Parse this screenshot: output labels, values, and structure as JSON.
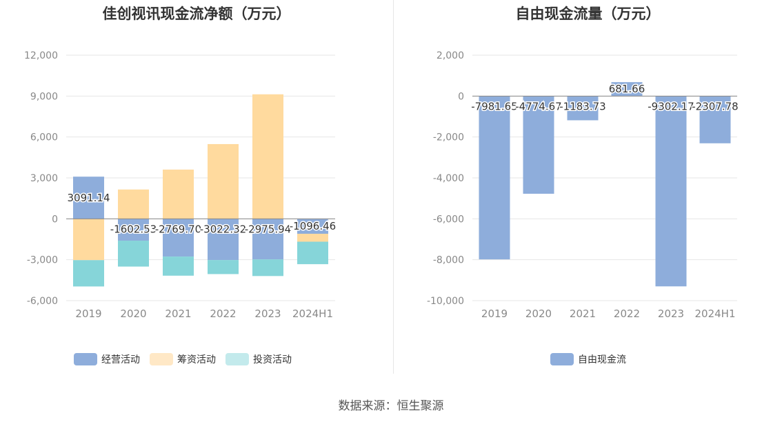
{
  "source": "数据来源：恒生聚源",
  "colors": {
    "operating": "#8EADDB",
    "financing": "#FFDA9E",
    "investing": "#86D5D9",
    "financing_legend": "#FFE8C6",
    "investing_legend": "#C3EAEC",
    "free": "#8EADDB"
  },
  "chart_data": [
    {
      "type": "bar",
      "stacked": true,
      "title": "佳创视讯现金流净额（万元）",
      "categories": [
        "2019",
        "2020",
        "2021",
        "2022",
        "2023",
        "2024H1"
      ],
      "ylim": [
        -6000,
        12000
      ],
      "yticks": [
        12000,
        9000,
        6000,
        3000,
        0,
        -3000,
        -6000
      ],
      "ytick_labels": [
        "12,000",
        "9,000",
        "6,000",
        "3,000",
        "0",
        "-3,000",
        "-6,000"
      ],
      "series": [
        {
          "name": "经营活动",
          "values": [
            3091.14,
            -1602.53,
            -2769.7,
            -3022.32,
            -2975.94,
            -1096.46
          ]
        },
        {
          "name": "筹资活动",
          "values": [
            -3030,
            2150,
            3610,
            5480,
            9130,
            -580
          ]
        },
        {
          "name": "投资活动",
          "values": [
            -1930,
            -1900,
            -1400,
            -1030,
            -1220,
            -1650
          ]
        }
      ],
      "data_labels": [
        "3091.14",
        "-1602.53",
        "-2769.70",
        "-3022.32",
        "-2975.94",
        "-1096.46"
      ],
      "legend": [
        "经营活动",
        "筹资活动",
        "投资活动"
      ],
      "grid": true
    },
    {
      "type": "bar",
      "title": "自由现金流量（万元）",
      "categories": [
        "2019",
        "2020",
        "2021",
        "2022",
        "2023",
        "2024H1"
      ],
      "ylim": [
        -10000,
        2000
      ],
      "yticks": [
        2000,
        0,
        -2000,
        -4000,
        -6000,
        -8000,
        -10000
      ],
      "ytick_labels": [
        "2,000",
        "0",
        "-2,000",
        "-4,000",
        "-6,000",
        "-8,000",
        "-10,000"
      ],
      "series": [
        {
          "name": "自由现金流",
          "values": [
            -7981.65,
            -4774.67,
            -1183.73,
            681.66,
            -9302.17,
            -2307.78
          ]
        }
      ],
      "data_labels": [
        "-7981.65",
        "-4774.67",
        "-1183.73",
        "681.66",
        "-9302.17",
        "-2307.78"
      ],
      "legend": [
        "自由现金流"
      ],
      "grid": true
    }
  ]
}
